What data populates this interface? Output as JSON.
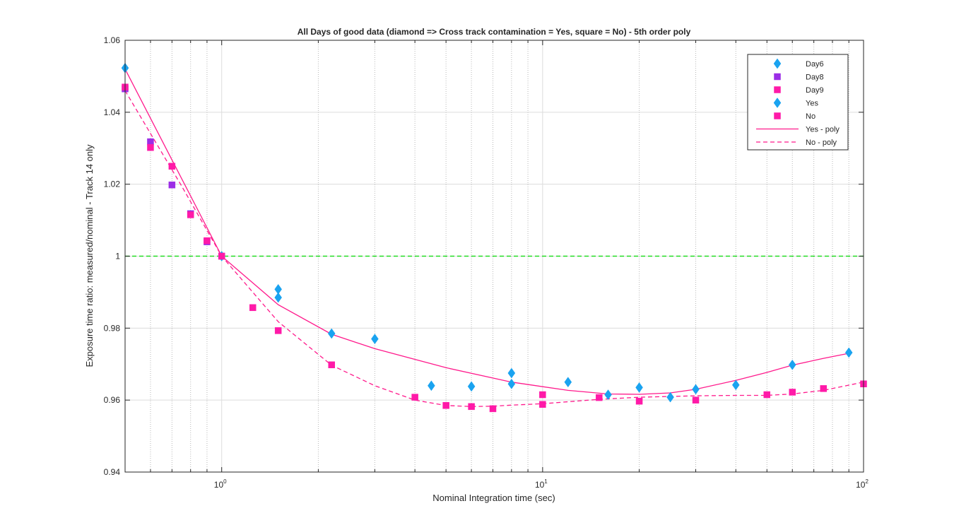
{
  "chart_data": {
    "type": "scatter",
    "title": "All Days of good data  (diamond => Cross track contamination = Yes, square = No) - 5th order poly",
    "xlabel": "Nominal Integration time (sec)",
    "ylabel": "Exposure time ratio: measured/nominal - Track 14  only",
    "xscale": "log",
    "xlim": [
      0.5,
      100
    ],
    "ylim": [
      0.94,
      1.06
    ],
    "yticks": [
      0.94,
      0.96,
      0.98,
      1,
      1.02,
      1.04,
      1.06
    ],
    "ytick_labels": [
      "0.94",
      "0.96",
      "0.98",
      "1",
      "1.02",
      "1.04",
      "1.06"
    ],
    "xtick_labels": [
      {
        "base": "10",
        "exp": "0",
        "value": 1
      },
      {
        "base": "10",
        "exp": "1",
        "value": 10
      },
      {
        "base": "10",
        "exp": "2",
        "value": 100
      }
    ],
    "grid": true,
    "legend_position": "top-right",
    "reference_line": {
      "y": 1,
      "color": "#22dd22",
      "style": "dashed"
    },
    "series": [
      {
        "name": "Day6",
        "marker": "diamond",
        "color": "#1aa3f0",
        "x": [
          0.5,
          1,
          1.5,
          1.5,
          2.2,
          3,
          4.5,
          6,
          8,
          8,
          12,
          16,
          20,
          25,
          30,
          40,
          60,
          90
        ],
        "y": [
          1.0523,
          1.0,
          0.9908,
          0.9885,
          0.9785,
          0.977,
          0.964,
          0.9638,
          0.9675,
          0.9645,
          0.965,
          0.9615,
          0.9635,
          0.9608,
          0.963,
          0.9642,
          0.9698,
          0.9732
        ]
      },
      {
        "name": "Day8",
        "marker": "square",
        "color": "#9b2de6",
        "x": [
          0.5,
          0.6,
          0.7,
          0.8,
          0.9,
          1
        ],
        "y": [
          1.0465,
          1.0318,
          1.0198,
          1.0118,
          1.004,
          1.0
        ]
      },
      {
        "name": "Day9",
        "marker": "square",
        "color": "#ff1aa8",
        "x": [
          0.5,
          0.6,
          0.7,
          0.8,
          0.9,
          1,
          1.25,
          1.5,
          2.2,
          4,
          5,
          6,
          7,
          10,
          10,
          15,
          20,
          30,
          50,
          60,
          75,
          100
        ],
        "y": [
          1.047,
          1.0302,
          1.025,
          1.0115,
          1.0043,
          1.0,
          0.9857,
          0.9793,
          0.9698,
          0.9608,
          0.9585,
          0.9582,
          0.9576,
          0.9615,
          0.9588,
          0.9607,
          0.9597,
          0.96,
          0.9615,
          0.9622,
          0.9632,
          0.9645
        ]
      },
      {
        "name": "Yes",
        "marker": "diamond",
        "color": "#1aa3f0",
        "x": [],
        "y": []
      },
      {
        "name": "No",
        "marker": "square",
        "color": "#ff1aa8",
        "x": [],
        "y": []
      },
      {
        "name": "Yes - poly",
        "marker": "none",
        "line": "solid",
        "color": "#ff1a8c",
        "x": [
          0.5,
          1,
          1.5,
          2.2,
          3,
          5,
          8,
          12,
          16,
          20,
          25,
          30,
          40,
          50,
          60,
          75,
          90
        ],
        "y": [
          1.052,
          1.0,
          0.9865,
          0.9783,
          0.9743,
          0.969,
          0.965,
          0.9627,
          0.9617,
          0.9616,
          0.962,
          0.963,
          0.9655,
          0.9677,
          0.9697,
          0.9716,
          0.973
        ]
      },
      {
        "name": "No - poly",
        "marker": "none",
        "line": "dashed",
        "color": "#ff1a8c",
        "x": [
          0.5,
          0.75,
          1,
          1.5,
          2.2,
          3,
          4,
          5,
          6,
          7,
          8,
          10,
          15,
          20,
          30,
          40,
          50,
          60,
          75,
          100
        ],
        "y": [
          1.046,
          1.0195,
          1.0,
          0.9818,
          0.9697,
          0.964,
          0.96,
          0.9585,
          0.9582,
          0.9583,
          0.9586,
          0.959,
          0.9602,
          0.9608,
          0.9612,
          0.9613,
          0.9613,
          0.9617,
          0.9627,
          0.965
        ]
      }
    ]
  }
}
